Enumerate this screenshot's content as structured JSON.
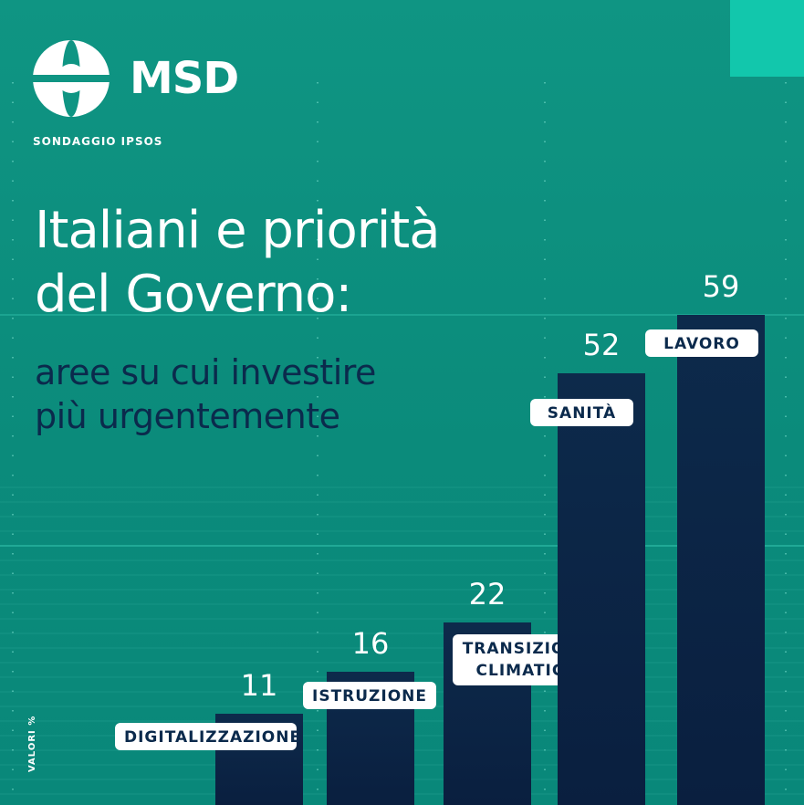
{
  "brand": {
    "name": "MSD",
    "source": "SONDAGGIO IPSOS"
  },
  "title": {
    "line1": "Italiani e priorità",
    "line2": "del Governo:"
  },
  "subtitle": {
    "line1": "aree su cui investire",
    "line2": "più urgentemente"
  },
  "axis_note": "VALORI %",
  "colors": {
    "background": "#0a8c7c",
    "accent": "#12c7ac",
    "bar": "#0b2345",
    "text_dark": "#0b2a4c",
    "white": "#ffffff"
  },
  "chart_data": {
    "type": "bar",
    "title": "Italiani e priorità del Governo: aree su cui investire più urgentemente",
    "ylabel": "VALORI %",
    "categories": [
      "DIGITALIZZAZIONE",
      "ISTRUZIONE",
      "TRANSIZIONE CLIMATICA",
      "SANITÀ",
      "LAVORO"
    ],
    "values": [
      11,
      16,
      22,
      52,
      59
    ],
    "ylim": [
      0,
      59
    ],
    "grid": true,
    "legend": "none"
  }
}
